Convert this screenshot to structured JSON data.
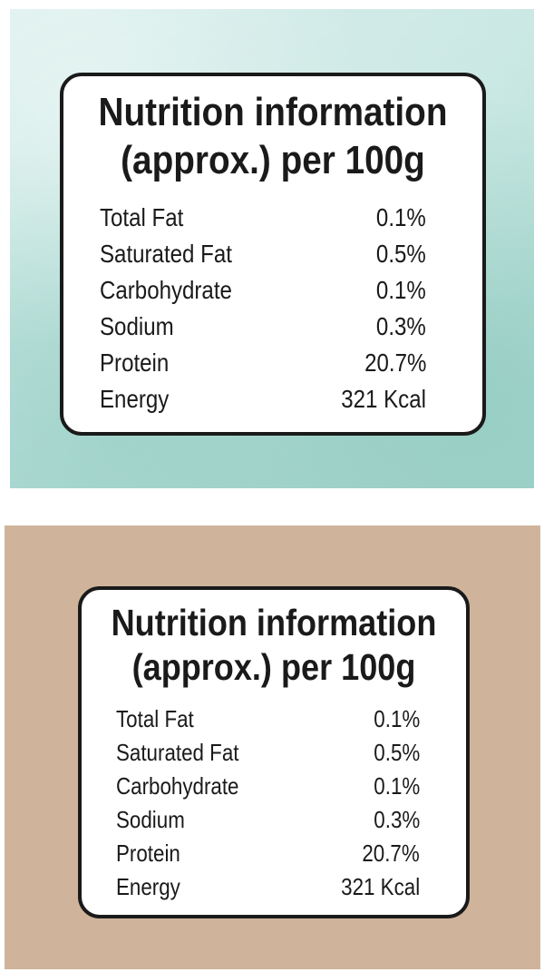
{
  "labels": [
    {
      "title_line1": "Nutrition information",
      "title_line2": "(approx.) per 100g",
      "rows": [
        {
          "name": "Total Fat",
          "value": "0.1%"
        },
        {
          "name": "Saturated Fat",
          "value": "0.5%"
        },
        {
          "name": "Carbohydrate",
          "value": "0.1%"
        },
        {
          "name": "Sodium",
          "value": "0.3%"
        },
        {
          "name": "Protein",
          "value": "20.7%"
        },
        {
          "name": "Energy",
          "value": "321 Kcal"
        }
      ]
    },
    {
      "title_line1": "Nutrition information",
      "title_line2": "(approx.) per 100g",
      "rows": [
        {
          "name": "Total Fat",
          "value": "0.1%"
        },
        {
          "name": "Saturated Fat",
          "value": "0.5%"
        },
        {
          "name": "Carbohydrate",
          "value": "0.1%"
        },
        {
          "name": "Sodium",
          "value": "0.3%"
        },
        {
          "name": "Protein",
          "value": "20.7%"
        },
        {
          "name": "Energy",
          "value": "321 Kcal"
        }
      ]
    }
  ],
  "colors": {
    "top_background": "#bfe3dd",
    "bottom_background": "#cfb49b",
    "label_border": "#1a1a1a",
    "label_fill": "#ffffff"
  }
}
